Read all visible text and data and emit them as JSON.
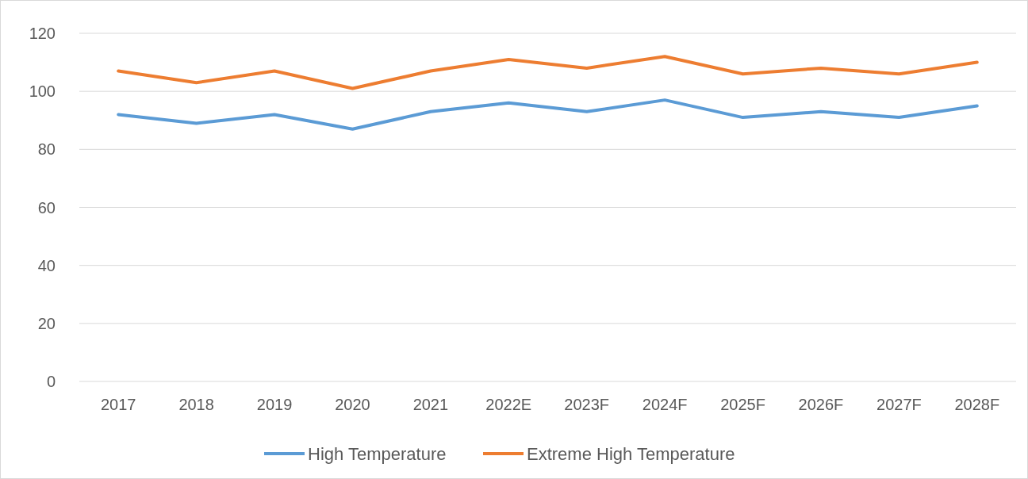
{
  "chart_data": {
    "type": "line",
    "categories": [
      "2017",
      "2018",
      "2019",
      "2020",
      "2021",
      "2022E",
      "2023F",
      "2024F",
      "2025F",
      "2026F",
      "2027F",
      "2028F"
    ],
    "series": [
      {
        "name": "High Temperature",
        "color": "#5b9bd5",
        "values": [
          92,
          89,
          92,
          87,
          93,
          96,
          93,
          97,
          91,
          93,
          91,
          95
        ]
      },
      {
        "name": "Extreme High Temperature",
        "color": "#ed7d31",
        "values": [
          107,
          103,
          107,
          101,
          107,
          111,
          108,
          112,
          106,
          108,
          106,
          110
        ]
      }
    ],
    "ylim": [
      0,
      120
    ],
    "yticks": [
      0,
      20,
      40,
      60,
      80,
      100,
      120
    ],
    "grid": "y",
    "legend": "bottom",
    "marker": "none",
    "line_style": "solid"
  }
}
